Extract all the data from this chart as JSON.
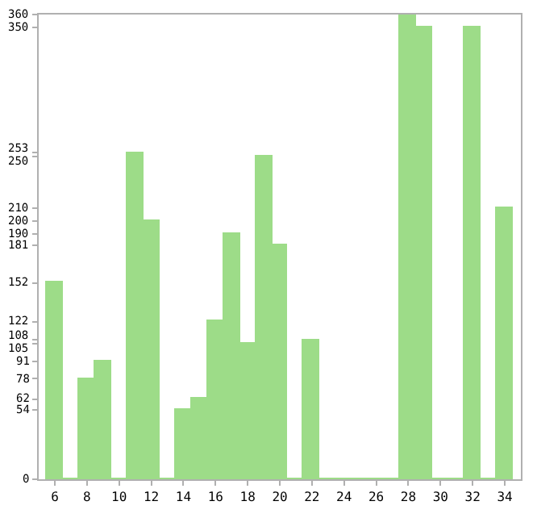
{
  "chart_data": {
    "type": "bar",
    "x": [
      6,
      7,
      8,
      9,
      10,
      11,
      12,
      13,
      14,
      15,
      16,
      17,
      18,
      19,
      20,
      21,
      22,
      23,
      24,
      25,
      26,
      27,
      28,
      29,
      30,
      31,
      32,
      33,
      34
    ],
    "values": [
      152,
      0,
      78,
      91,
      0,
      253,
      200,
      0,
      54,
      62,
      122,
      190,
      105,
      250,
      181,
      0,
      108,
      0,
      0,
      0,
      0,
      0,
      360,
      350,
      0,
      0,
      350,
      0,
      210
    ],
    "color": "#9ddc88",
    "xlim": [
      5,
      35
    ],
    "xticks": [
      6,
      8,
      10,
      12,
      14,
      16,
      18,
      20,
      22,
      24,
      26,
      28,
      30,
      32,
      34
    ],
    "ylim": [
      0,
      360
    ],
    "yticks": [
      0,
      54,
      62,
      78,
      91,
      105,
      108,
      122,
      152,
      181,
      190,
      200,
      210,
      250,
      253,
      350,
      360
    ],
    "tick_labels": "xy"
  }
}
